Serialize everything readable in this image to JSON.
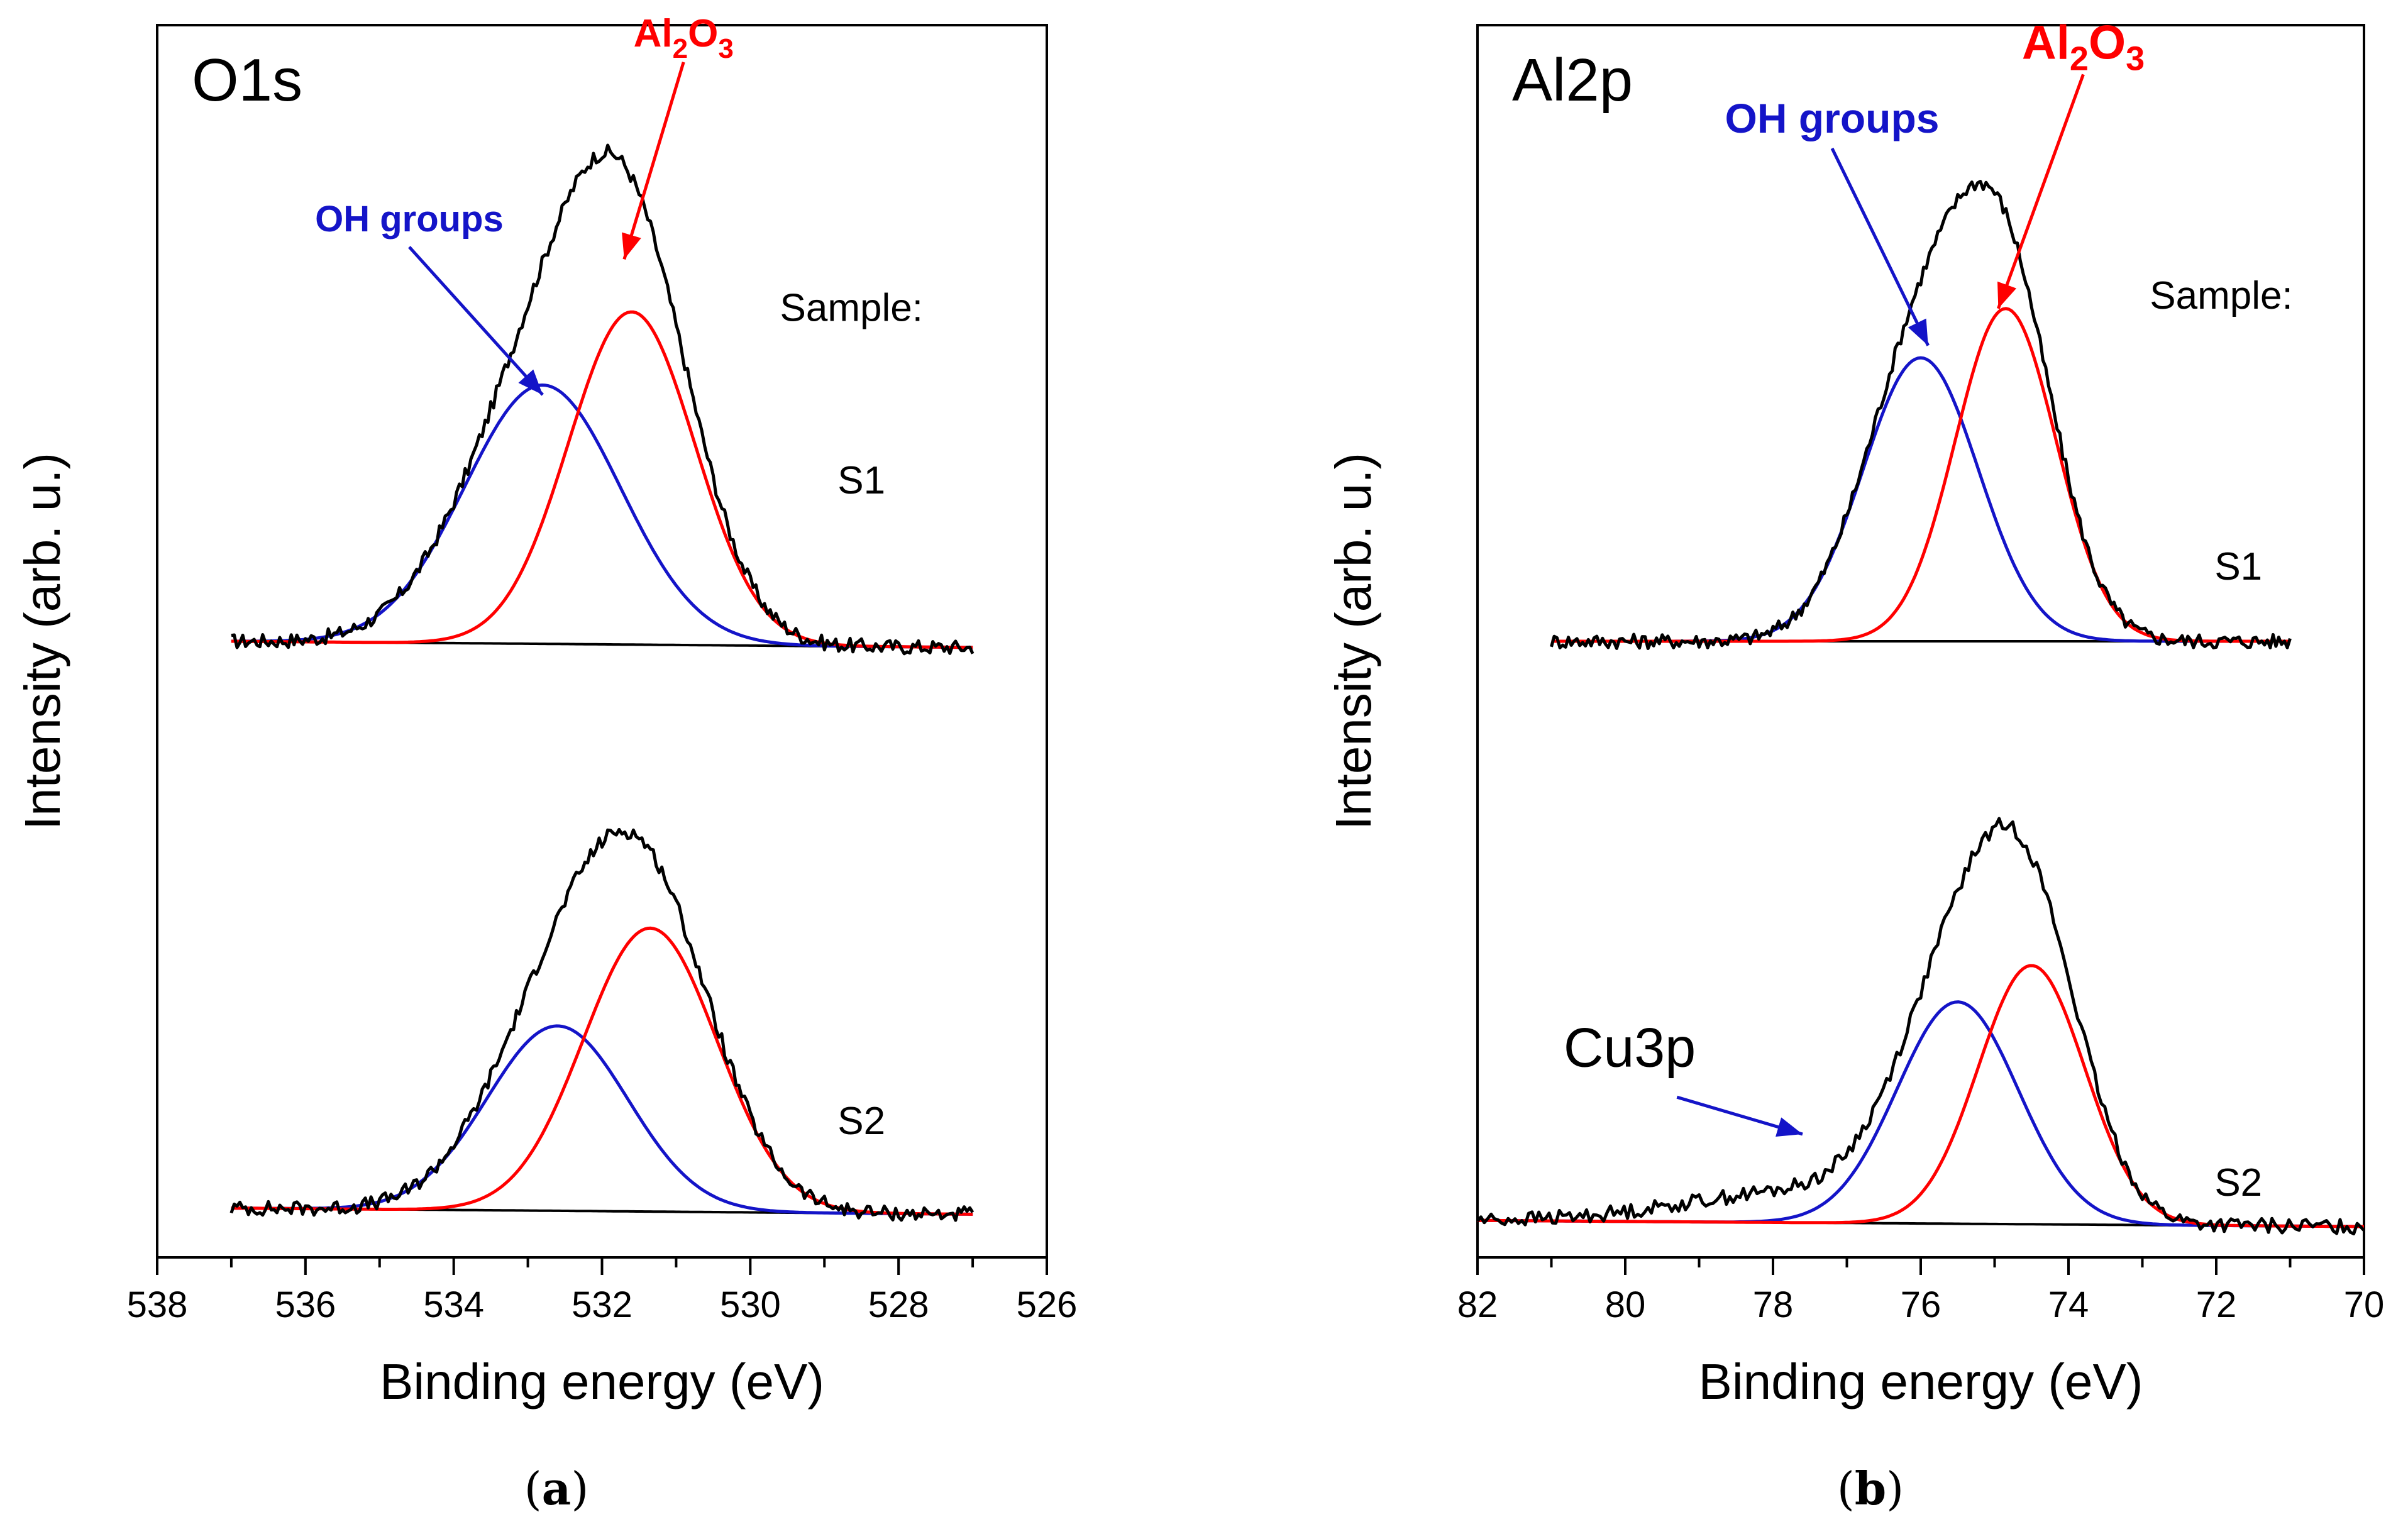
{
  "chart_data": [
    {
      "id": "a",
      "type": "line",
      "panel_label": "O1s",
      "caption_letter": "a",
      "xlabel": "Binding energy (eV)",
      "ylabel": "Intensity (arb. u.)",
      "xlim": [
        538,
        526
      ],
      "x_reversed": true,
      "ylim": [
        0,
        1
      ],
      "xticks": [
        538,
        536,
        534,
        532,
        530,
        528,
        526
      ],
      "xtick_labels": [
        "538",
        "536",
        "534",
        "532",
        "530",
        "528",
        "526"
      ],
      "legend_title": "Sample:",
      "components": [
        {
          "name": "OH groups",
          "color": "#1414c8"
        },
        {
          "name": "Al2O3",
          "color": "#ff0000"
        }
      ],
      "annotations": {
        "oh": {
          "text": "OH groups",
          "color": "#1414c8",
          "from": [
            534.6,
            0.82
          ],
          "to": [
            532.8,
            0.7
          ]
        },
        "al2o3": {
          "base": "Al",
          "sub1": "2",
          "mid": "O",
          "sub2": "3",
          "color": "#ff0000",
          "from": [
            530.9,
            0.97
          ],
          "to": [
            531.7,
            0.81
          ]
        }
      },
      "samples": [
        {
          "label": "S1",
          "label_pos": [
            528.5,
            0.62
          ],
          "x_range": [
            537,
            527
          ],
          "baseline": [
            0.5,
            0.495
          ],
          "envelope_color": "#000000",
          "peaks": [
            {
              "name": "OH groups",
              "center": 532.8,
              "height": 0.21,
              "sigma": 1.05,
              "color": "#1414c8"
            },
            {
              "name": "Al2O3",
              "center": 531.6,
              "height": 0.27,
              "sigma": 0.85,
              "color": "#ff0000"
            }
          ]
        },
        {
          "label": "S2",
          "label_pos": [
            528.5,
            0.1
          ],
          "x_range": [
            537,
            527
          ],
          "baseline": [
            0.04,
            0.035
          ],
          "envelope_color": "#000000",
          "peaks": [
            {
              "name": "OH groups",
              "center": 532.6,
              "height": 0.15,
              "sigma": 0.95,
              "color": "#1414c8"
            },
            {
              "name": "Al2O3",
              "center": 531.35,
              "height": 0.23,
              "sigma": 0.9,
              "color": "#ff0000"
            }
          ]
        }
      ]
    },
    {
      "id": "b",
      "type": "line",
      "panel_label": "Al2p",
      "caption_letter": "b",
      "xlabel": "Binding energy (eV)",
      "ylabel": "Intensity (arb. u.)",
      "xlim": [
        82,
        70
      ],
      "x_reversed": true,
      "ylim": [
        0,
        1
      ],
      "xticks": [
        82,
        80,
        78,
        76,
        74,
        72,
        70
      ],
      "xtick_labels": [
        "82",
        "80",
        "78",
        "76",
        "74",
        "72",
        "70"
      ],
      "legend_title": "Sample:",
      "components": [
        {
          "name": "OH groups",
          "color": "#1414c8"
        },
        {
          "name": "Al2O3",
          "color": "#ff0000"
        }
      ],
      "annotations": {
        "oh": {
          "text": "OH groups",
          "color": "#1414c8",
          "from": [
            77.2,
            0.9
          ],
          "to": [
            75.9,
            0.74
          ]
        },
        "al2o3": {
          "base": "Al",
          "sub1": "2",
          "mid": "O",
          "sub2": "3",
          "color": "#ff0000",
          "from": [
            73.8,
            0.96
          ],
          "to": [
            74.95,
            0.77
          ]
        },
        "cu3p": {
          "text": "Cu3p",
          "color": "#000000",
          "arrow_color": "#1414c8",
          "from": [
            79.6,
            0.16
          ],
          "to": [
            77.6,
            0.1
          ]
        }
      },
      "samples": [
        {
          "label": "S1",
          "label_pos": [
            71.7,
            0.55
          ],
          "x_range": [
            81,
            71
          ],
          "baseline": [
            0.5,
            0.5
          ],
          "envelope_color": "#000000",
          "peaks": [
            {
              "name": "OH groups",
              "center": 76.0,
              "height": 0.23,
              "sigma": 0.78,
              "color": "#1414c8"
            },
            {
              "name": "Al2O3",
              "center": 74.85,
              "height": 0.27,
              "sigma": 0.68,
              "color": "#ff0000"
            }
          ]
        },
        {
          "label": "S2",
          "label_pos": [
            71.7,
            0.05
          ],
          "x_range": [
            82,
            70
          ],
          "baseline": [
            0.03,
            0.025
          ],
          "envelope_color": "#000000",
          "cu3p_bump": {
            "center": 77.6,
            "height": 0.025,
            "sigma": 1.6
          },
          "peaks": [
            {
              "name": "OH groups",
              "center": 75.5,
              "height": 0.18,
              "sigma": 0.82,
              "color": "#1414c8"
            },
            {
              "name": "Al2O3",
              "center": 74.5,
              "height": 0.21,
              "sigma": 0.72,
              "color": "#ff0000"
            }
          ]
        }
      ]
    }
  ]
}
